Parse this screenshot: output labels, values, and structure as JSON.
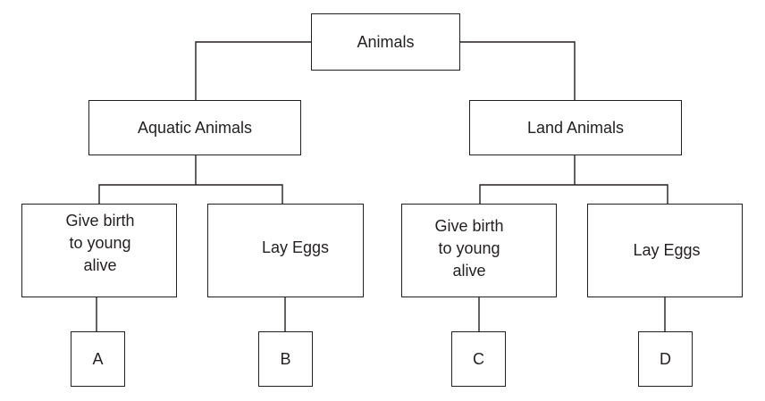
{
  "root": {
    "label": "Animals"
  },
  "branches": [
    {
      "label": "Aquatic Animals",
      "children": [
        {
          "label": "Give birth to young alive",
          "leaf": "A"
        },
        {
          "label": "Lay Eggs",
          "leaf": "B"
        }
      ]
    },
    {
      "label": "Land Animals",
      "children": [
        {
          "label": "Give birth to young alive",
          "leaf": "C"
        },
        {
          "label": "Lay Eggs",
          "leaf": "D"
        }
      ]
    }
  ],
  "colors": {
    "line": "#231f20",
    "background": "#ffffff"
  }
}
